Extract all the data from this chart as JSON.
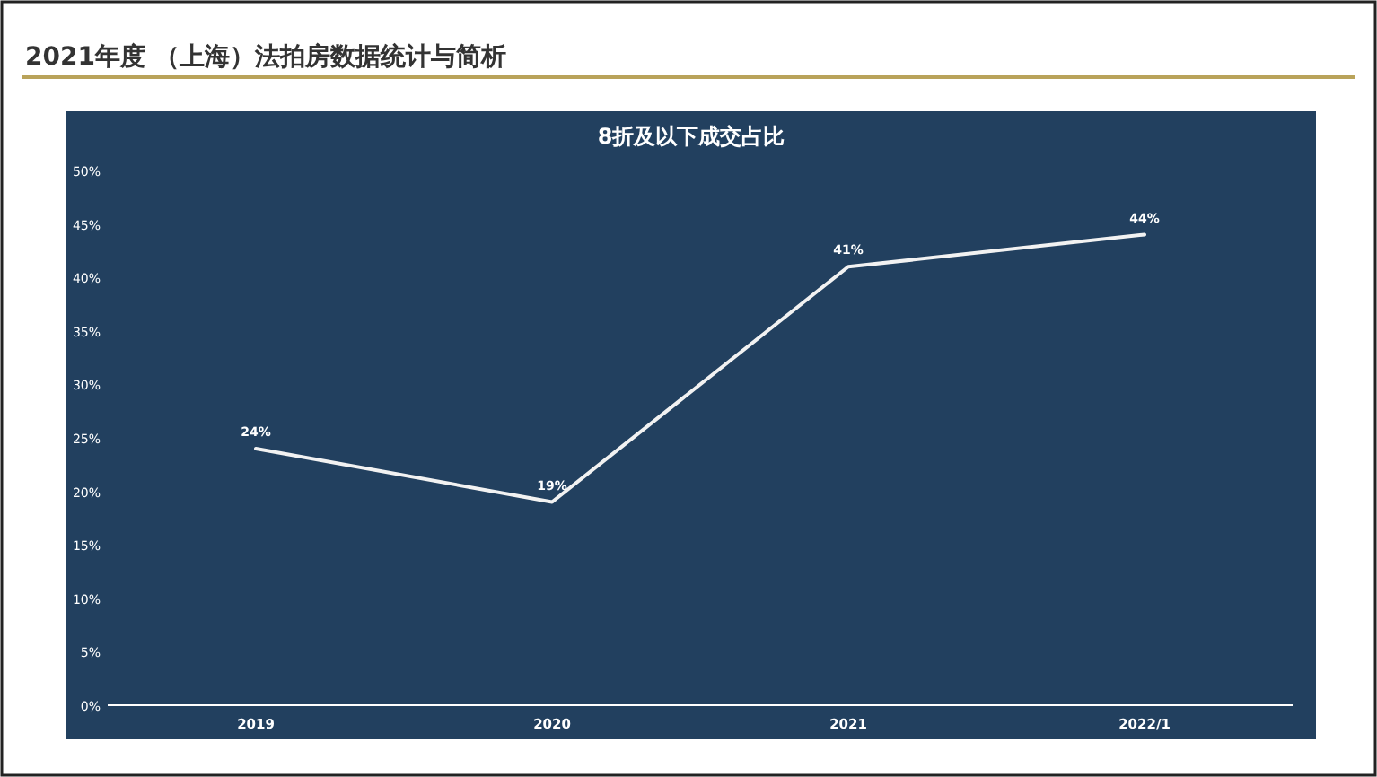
{
  "chart_data": {
    "type": "line",
    "title": "2021年度 （上海）法拍房数据统计与简析",
    "subtitle": "8折及以下成交占比",
    "categories": [
      "2019",
      "2020",
      "2021",
      "2022/1"
    ],
    "series": [
      {
        "color": "#f2f2f2",
        "values": [
          24,
          19,
          41,
          44
        ],
        "value_labels": [
          "24%",
          "19%",
          "41%",
          "44%"
        ]
      }
    ],
    "ylim": [
      0,
      50
    ],
    "yticks": [
      {
        "value": 0,
        "label": "0%"
      },
      {
        "value": 5,
        "label": "5%"
      },
      {
        "value": 10,
        "label": "10%"
      },
      {
        "value": 15,
        "label": "15%"
      },
      {
        "value": 20,
        "label": "20%"
      },
      {
        "value": 25,
        "label": "25%"
      },
      {
        "value": 30,
        "label": "30%"
      },
      {
        "value": 35,
        "label": "35%"
      },
      {
        "value": 40,
        "label": "40%"
      },
      {
        "value": 45,
        "label": "45%"
      },
      {
        "value": 50,
        "label": "50%"
      }
    ],
    "grid": false,
    "marker": "none",
    "line_style": "solid"
  }
}
